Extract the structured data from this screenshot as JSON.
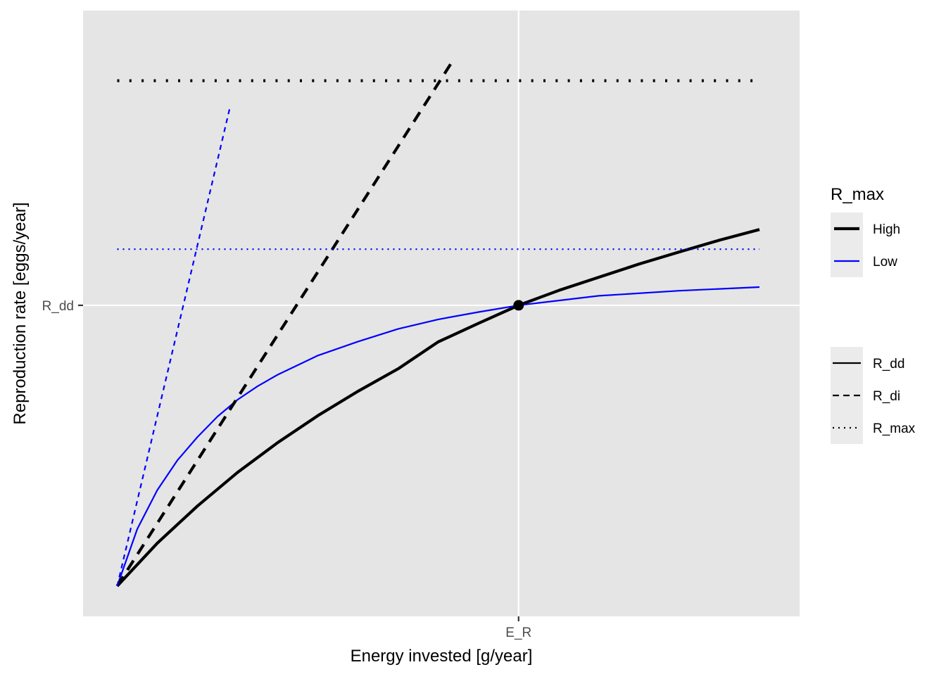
{
  "chart_data": {
    "type": "line",
    "title": "",
    "xlabel": "Energy invested [g/year]",
    "ylabel": "Reproduction rate [eggs/year]",
    "x_ticks": [
      {
        "label": "E_R",
        "value": 1.0
      }
    ],
    "y_ticks": [
      {
        "label": "R_dd",
        "value": 1.0
      }
    ],
    "xlim": [
      -0.085,
      1.7
    ],
    "ylim": [
      -0.108,
      2.05
    ],
    "grid": true,
    "point": {
      "x": 1.0,
      "y": 1.0,
      "color": "#000000"
    },
    "legend": {
      "placement": "right",
      "color_title": "R_max",
      "color_entries": [
        {
          "label": "High",
          "color": "#000000"
        },
        {
          "label": "Low",
          "color": "#0000ff"
        }
      ],
      "linetype_title": "",
      "linetype_entries": [
        {
          "label": "R_dd",
          "dash": "solid"
        },
        {
          "label": "R_di",
          "dash": "dashed"
        },
        {
          "label": "R_max",
          "dash": "dotted"
        }
      ]
    },
    "series": [
      {
        "group": "High",
        "kind": "R_dd",
        "color": "#000000",
        "dash": "solid",
        "x": [
          0,
          0.1,
          0.2,
          0.3,
          0.4,
          0.5,
          0.6,
          0.7,
          0.8,
          0.9,
          1.0,
          1.1,
          1.2,
          1.3,
          1.4,
          1.5,
          1.6
        ],
        "y": [
          0,
          0.153,
          0.285,
          0.405,
          0.511,
          0.607,
          0.694,
          0.774,
          0.87,
          0.936,
          1.0,
          1.053,
          1.1,
          1.147,
          1.19,
          1.232,
          1.27
        ]
      },
      {
        "group": "Low",
        "kind": "R_dd",
        "color": "#0000ff",
        "dash": "solid",
        "x": [
          0,
          0.05,
          0.1,
          0.15,
          0.2,
          0.25,
          0.3,
          0.35,
          0.4,
          0.5,
          0.6,
          0.7,
          0.8,
          0.9,
          1.0,
          1.2,
          1.4,
          1.6
        ],
        "y": [
          0,
          0.203,
          0.342,
          0.448,
          0.531,
          0.604,
          0.664,
          0.712,
          0.753,
          0.821,
          0.871,
          0.916,
          0.95,
          0.976,
          1.0,
          1.034,
          1.052,
          1.065
        ]
      },
      {
        "group": "High",
        "kind": "R_di",
        "color": "#000000",
        "dash": "dashed",
        "x": [
          0,
          0.84
        ],
        "y": [
          0,
          1.88
        ]
      },
      {
        "group": "Low",
        "kind": "R_di",
        "color": "#0000ff",
        "dash": "dashed",
        "x": [
          0,
          0.28
        ],
        "y": [
          0,
          1.7
        ]
      },
      {
        "group": "High",
        "kind": "R_max",
        "color": "#000000",
        "dash": "dotted",
        "x": [
          0,
          1.6
        ],
        "y": [
          1.8,
          1.8
        ]
      },
      {
        "group": "Low",
        "kind": "R_max",
        "color": "#0000ff",
        "dash": "dotted",
        "x": [
          0,
          1.6
        ],
        "y": [
          1.2,
          1.2
        ]
      }
    ]
  }
}
